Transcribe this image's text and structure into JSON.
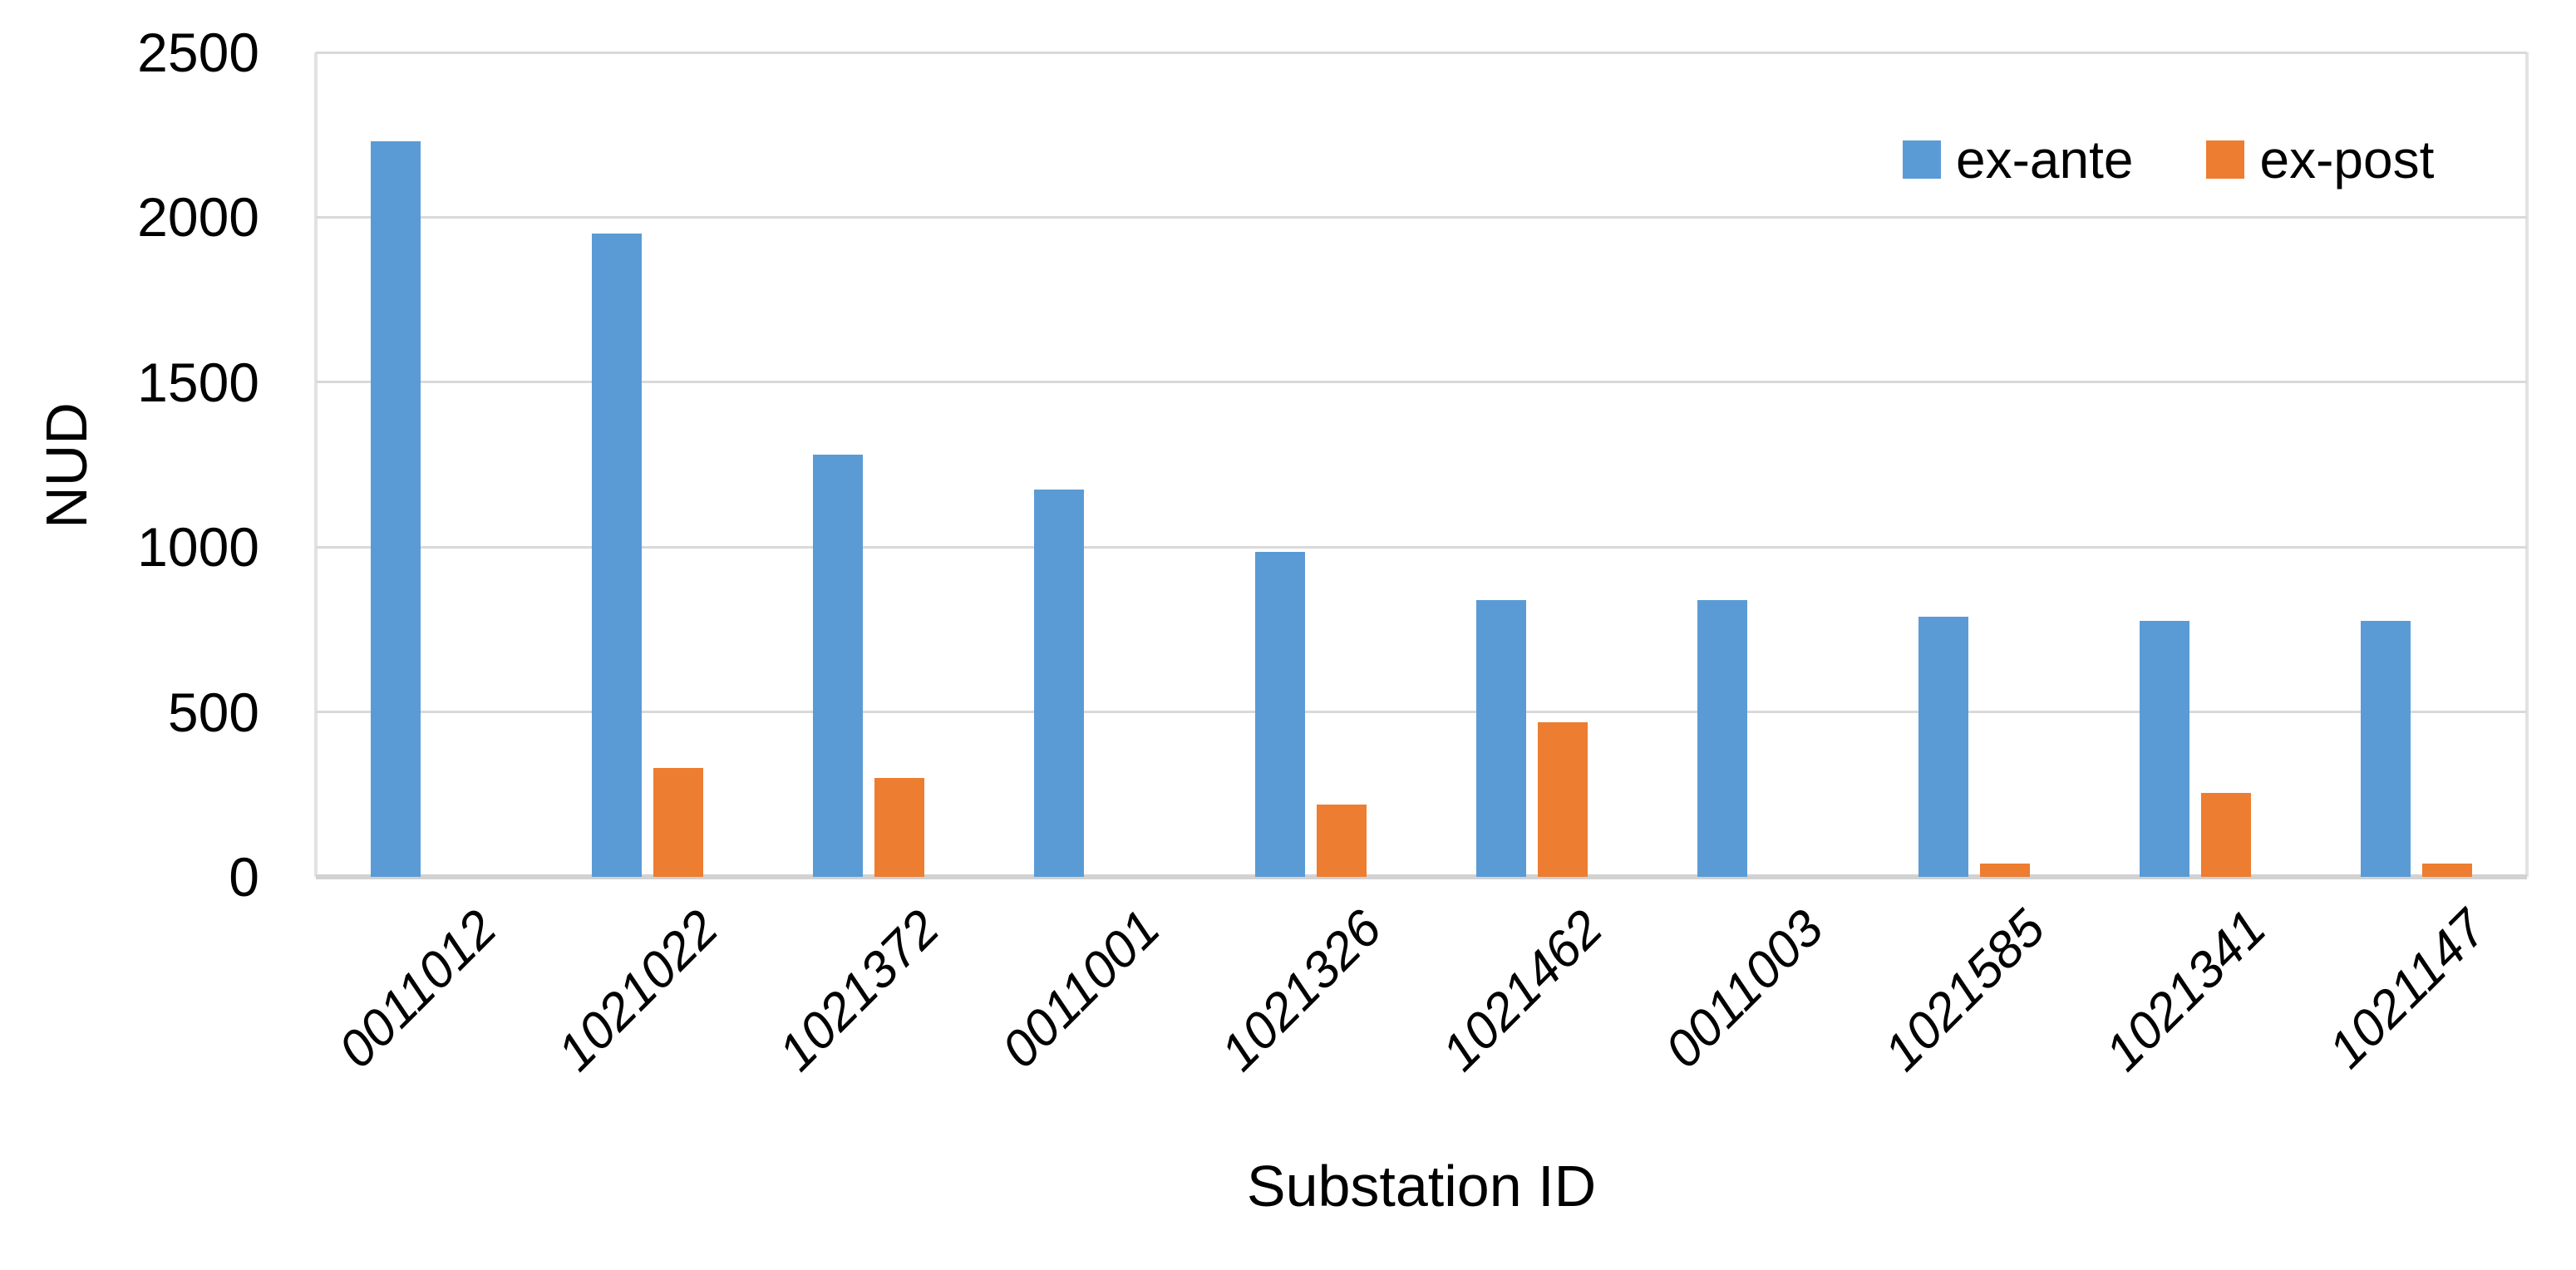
{
  "chart_data": {
    "type": "bar",
    "title": "",
    "xlabel": "Substation ID",
    "ylabel": "NUD",
    "ylim": [
      0,
      2500
    ],
    "yticks": [
      0,
      500,
      1000,
      1500,
      2000,
      2500
    ],
    "grid": true,
    "legend_position": "top-right",
    "categories": [
      "0011012",
      "1021022",
      "1021372",
      "0011001",
      "1021326",
      "1021462",
      "0011003",
      "1021585",
      "1021341",
      "1021147"
    ],
    "series": [
      {
        "name": "ex-ante",
        "color": "#5B9BD5",
        "values": [
          2230,
          1950,
          1280,
          1175,
          985,
          840,
          840,
          790,
          775,
          775
        ]
      },
      {
        "name": "ex-post",
        "color": "#ED7D31",
        "values": [
          0,
          330,
          300,
          0,
          220,
          470,
          0,
          40,
          255,
          40
        ]
      }
    ],
    "style": {
      "gridline_color": "#D9D9D9",
      "axis_line_color": "#D2D2D2",
      "text_color": "#000000"
    }
  }
}
